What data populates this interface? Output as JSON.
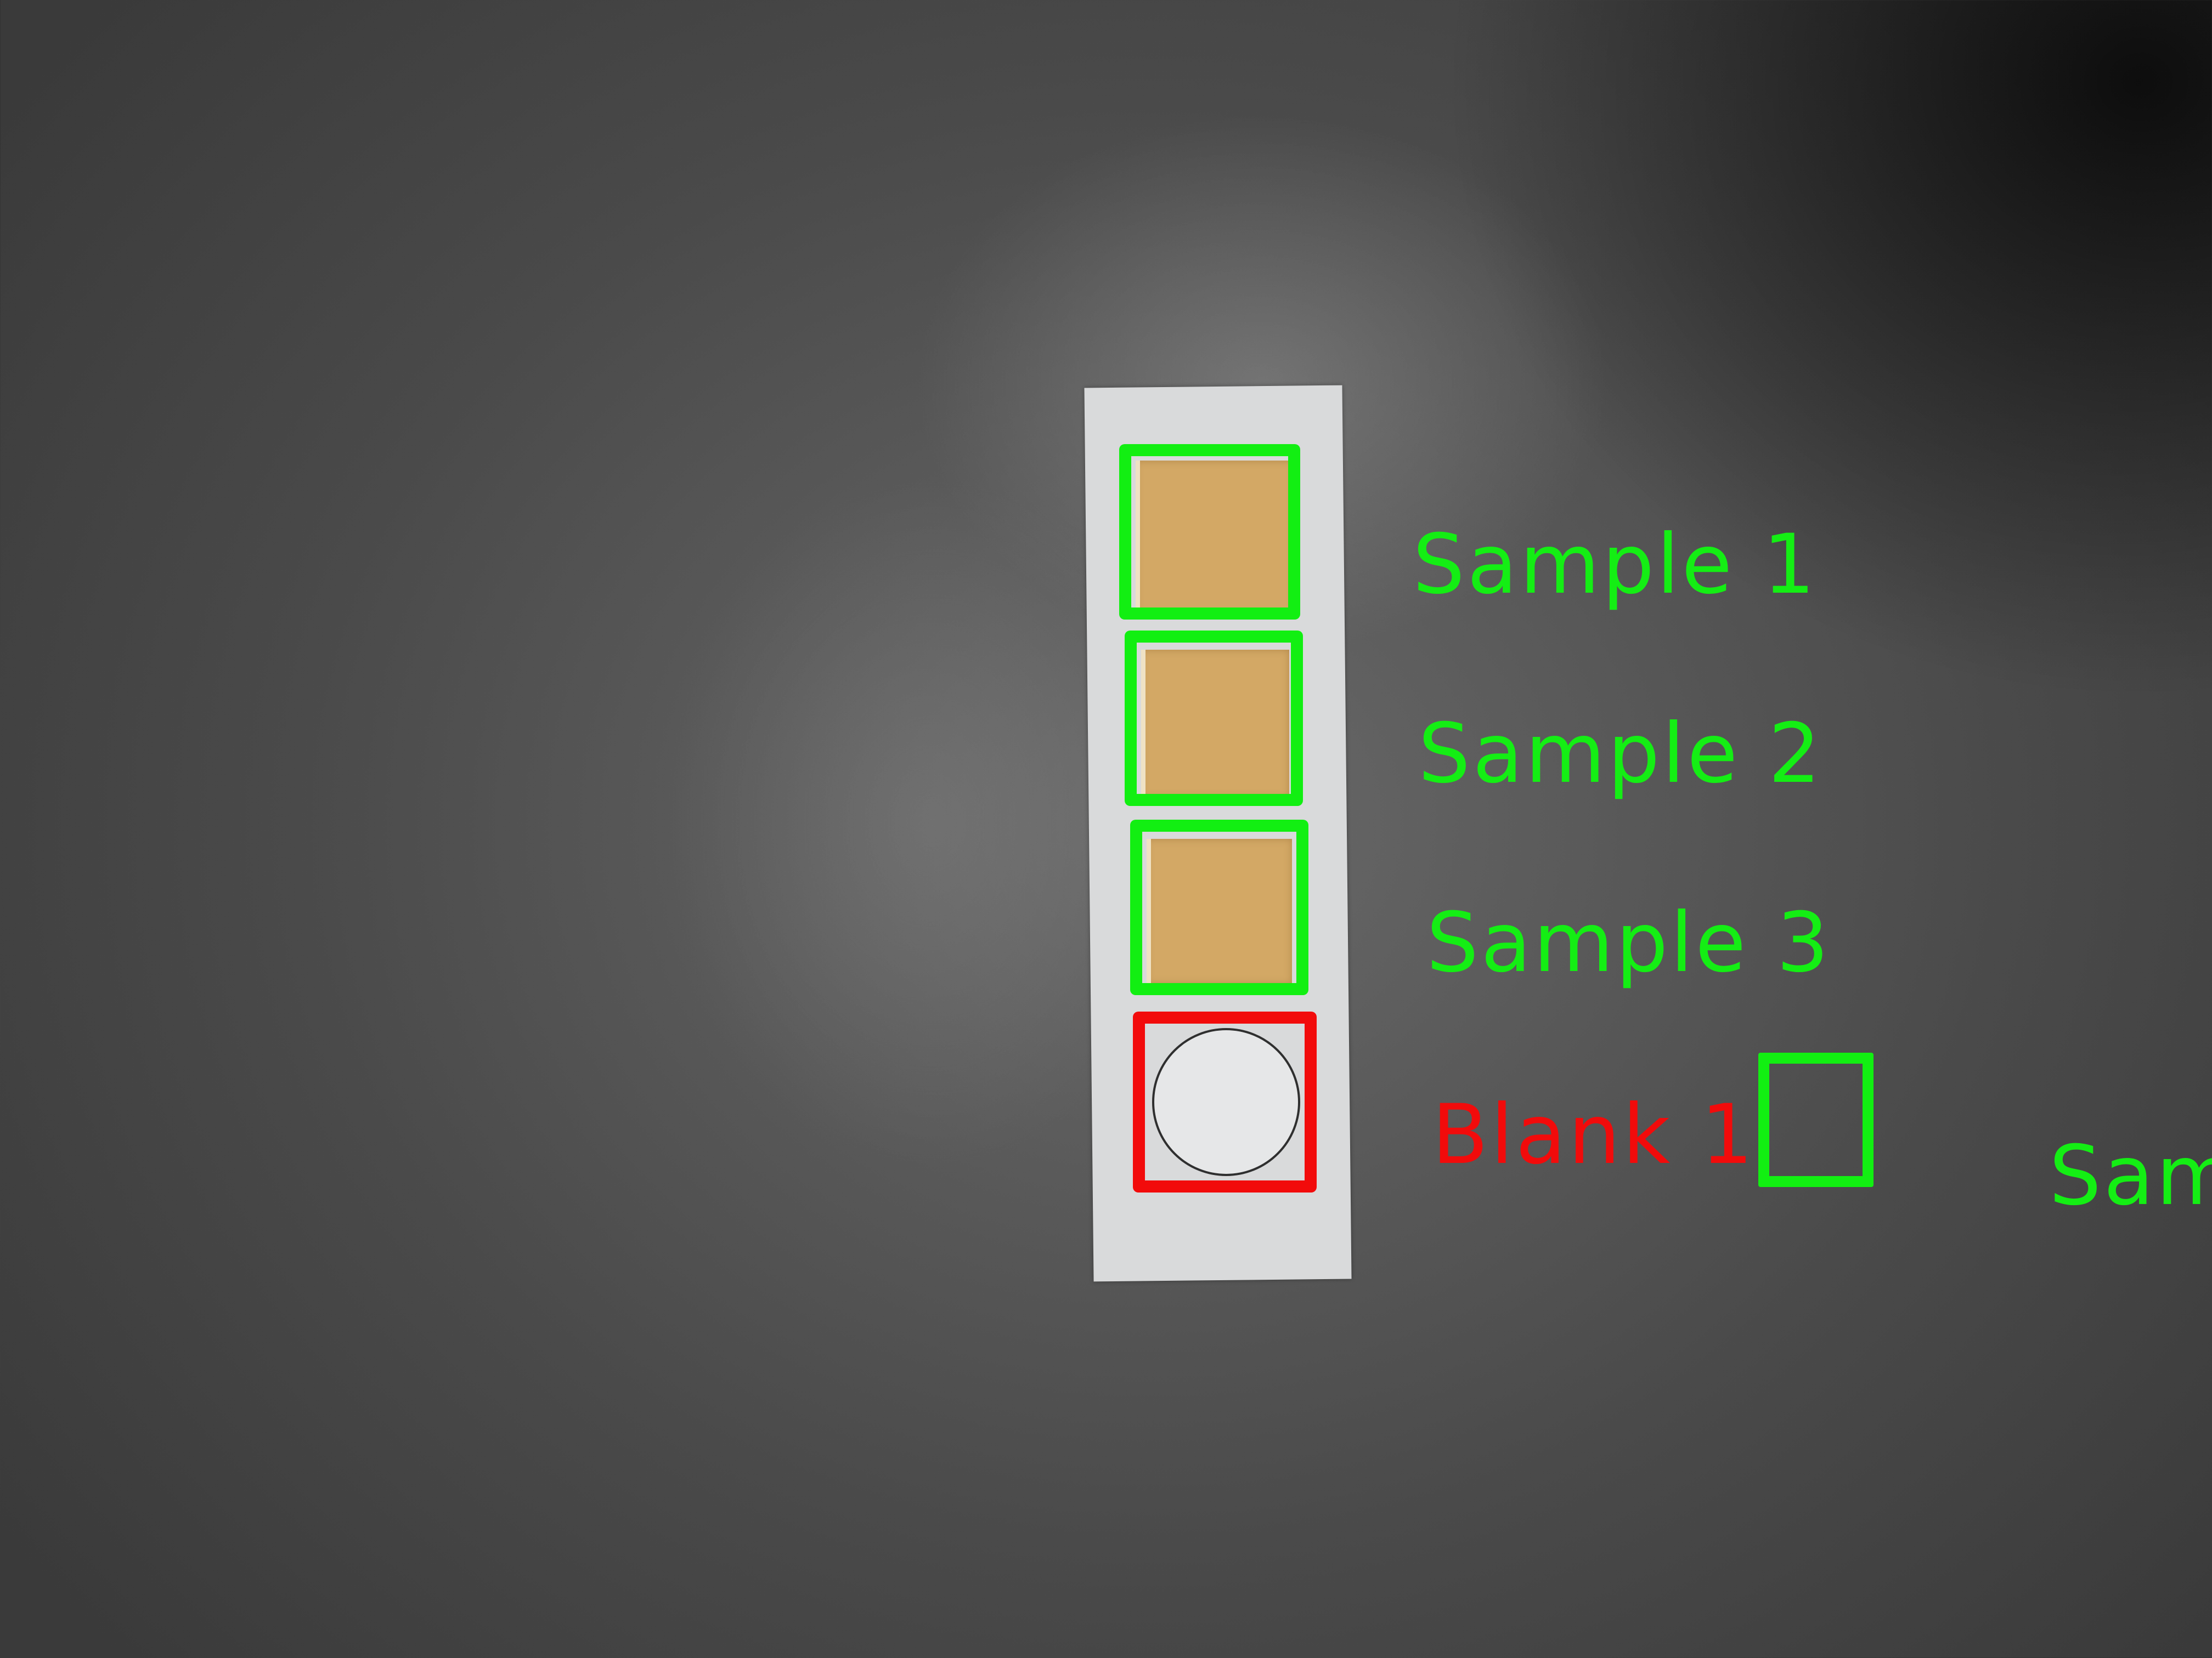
{
  "colors": {
    "detected": "#14ee14",
    "blank": "#f20b0b",
    "pad": "#d3a865",
    "strip": "#d9dadb"
  },
  "labels": {
    "sample_1": "Sample 1",
    "sample_2": "Sample 2",
    "sample_3": "Sample 3",
    "blank_1": "Blank 1",
    "clipped_sample": "Sam"
  }
}
